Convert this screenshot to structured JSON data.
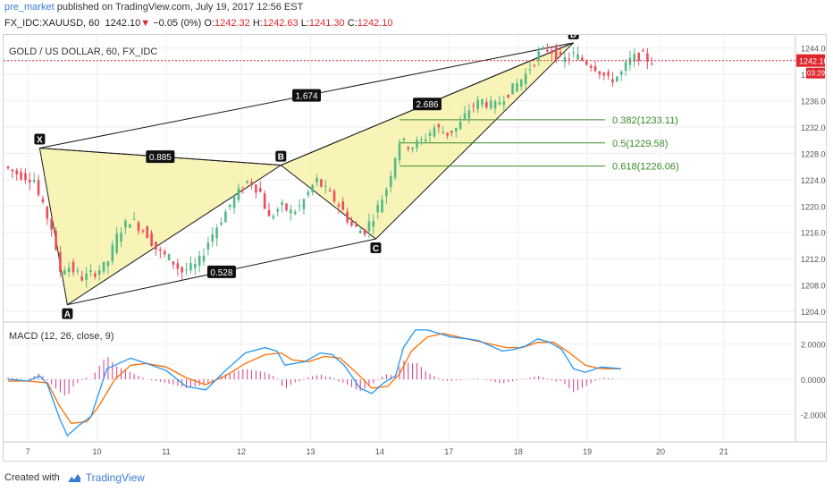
{
  "header": {
    "user": "pre_market",
    "published": "published on TradingView.com, July 19, 2017 12:56 EST",
    "symbol": "FX_IDC:XAUUSD, 60",
    "last": "1242.10",
    "change": "−0.05 (0%)",
    "o_label": "O:",
    "o_value": "1242.32",
    "h_label": "H:",
    "h_value": "1242.63",
    "l_label": "L:",
    "l_value": "1241.30",
    "c_label": "C:",
    "c_value": "1242.10"
  },
  "footer": {
    "created_with": "Created with",
    "brand": "TradingView"
  },
  "colors": {
    "up": "#53b987",
    "down": "#eb4d5c",
    "pattern_fill": "#f6f0a0",
    "pattern_line": "#1a1a1a",
    "fib": "#3a8a2a",
    "macd": "#2196f3",
    "signal": "#ff6d00",
    "hist": "#d23b8c",
    "price_line": "#e0262d",
    "grid": "#eeeeee"
  },
  "chart_data": [
    {
      "type": "candlestick",
      "title": "GOLD / US DOLLAR, 60, FX_IDC",
      "y_ticks": [
        1204,
        1208,
        1212,
        1216,
        1220,
        1224,
        1228,
        1232,
        1236,
        1240,
        1244
      ],
      "y_tick_labels": [
        "1204.00",
        "1208.00",
        "1212.00",
        "1216.00",
        "1220.00",
        "1224.00",
        "1228.00",
        "1232.00",
        "1236.00",
        "1240.00",
        "1244.00"
      ],
      "ylim": [
        1202.5,
        1246
      ],
      "x_labels": [
        "7",
        "10",
        "11",
        "12",
        "13",
        "14",
        "17",
        "18",
        "19",
        "20",
        "21"
      ],
      "last_price_label": "1242.10",
      "countdown_label": "03:29",
      "price_path": [
        [
          0,
          1226
        ],
        [
          6,
          1225
        ],
        [
          16,
          1224
        ],
        [
          18,
          1221
        ],
        [
          24,
          1217
        ],
        [
          28,
          1210
        ],
        [
          32,
          1211
        ],
        [
          40,
          1209
        ],
        [
          46,
          1210
        ],
        [
          52,
          1211
        ],
        [
          58,
          1216
        ],
        [
          64,
          1218
        ],
        [
          72,
          1216
        ],
        [
          78,
          1213
        ],
        [
          84,
          1212
        ],
        [
          90,
          1210
        ],
        [
          98,
          1211
        ],
        [
          104,
          1215
        ],
        [
          110,
          1218
        ],
        [
          116,
          1221
        ],
        [
          124,
          1224
        ],
        [
          130,
          1222
        ],
        [
          134,
          1218
        ],
        [
          140,
          1220
        ],
        [
          146,
          1219
        ],
        [
          150,
          1220
        ],
        [
          158,
          1224
        ],
        [
          164,
          1222
        ],
        [
          170,
          1220
        ],
        [
          176,
          1217
        ],
        [
          182,
          1216
        ],
        [
          188,
          1219
        ],
        [
          194,
          1223
        ],
        [
          200,
          1230
        ],
        [
          206,
          1229
        ],
        [
          212,
          1230
        ],
        [
          218,
          1232
        ],
        [
          224,
          1231
        ],
        [
          230,
          1232
        ],
        [
          236,
          1235
        ],
        [
          242,
          1236
        ],
        [
          248,
          1235
        ],
        [
          254,
          1237
        ],
        [
          258,
          1238
        ],
        [
          264,
          1240
        ],
        [
          270,
          1243
        ],
        [
          276,
          1244
        ],
        [
          282,
          1242
        ],
        [
          288,
          1243
        ],
        [
          294,
          1242
        ],
        [
          300,
          1241
        ],
        [
          306,
          1239
        ],
        [
          312,
          1240
        ],
        [
          316,
          1242
        ],
        [
          322,
          1243
        ],
        [
          327,
          1242
        ]
      ],
      "harmonic_pattern": {
        "points": [
          {
            "label": "X",
            "i": 16,
            "price": 1228.8
          },
          {
            "label": "A",
            "i": 30,
            "price": 1205.0
          },
          {
            "label": "B",
            "i": 138,
            "price": 1226.2
          },
          {
            "label": "C",
            "i": 186,
            "price": 1215.0
          },
          {
            "label": "D",
            "i": 286,
            "price": 1244.8
          }
        ],
        "ratios": [
          {
            "value": "0.885",
            "between": [
              "X",
              "B"
            ]
          },
          {
            "value": "0.528",
            "between": [
              "A",
              "C"
            ]
          },
          {
            "value": "1.674",
            "between": [
              "X",
              "D"
            ]
          },
          {
            "value": "2.686",
            "between": [
              "B",
              "D"
            ]
          }
        ]
      },
      "fibonacci": [
        {
          "label": "0.382(1233.11)",
          "price": 1233.11
        },
        {
          "label": "0.5(1229.58)",
          "price": 1229.58
        },
        {
          "label": "0.618(1226.06)",
          "price": 1226.06
        }
      ]
    },
    {
      "type": "line",
      "title": "MACD (12, 26, close, 9)",
      "y_ticks": [
        2,
        0,
        -2
      ],
      "y_tick_labels": [
        "2.0000",
        "0.0000",
        "-2.0000"
      ],
      "ylim": [
        -3.5,
        3.2
      ],
      "series": [
        {
          "name": "MACD",
          "points": [
            [
              0,
              0.0
            ],
            [
              10,
              -0.1
            ],
            [
              16,
              0.2
            ],
            [
              20,
              -0.3
            ],
            [
              26,
              -2.2
            ],
            [
              30,
              -3.2
            ],
            [
              36,
              -2.6
            ],
            [
              42,
              -2.1
            ],
            [
              50,
              0.6
            ],
            [
              56,
              0.9
            ],
            [
              62,
              1.2
            ],
            [
              70,
              0.9
            ],
            [
              80,
              0.5
            ],
            [
              90,
              -0.4
            ],
            [
              100,
              -0.6
            ],
            [
              110,
              0.5
            ],
            [
              120,
              1.5
            ],
            [
              130,
              1.8
            ],
            [
              136,
              1.6
            ],
            [
              140,
              0.8
            ],
            [
              150,
              1.0
            ],
            [
              158,
              1.5
            ],
            [
              164,
              1.4
            ],
            [
              170,
              0.8
            ],
            [
              178,
              -0.5
            ],
            [
              184,
              -0.8
            ],
            [
              190,
              -0.2
            ],
            [
              196,
              0.2
            ],
            [
              200,
              1.8
            ],
            [
              206,
              2.8
            ],
            [
              212,
              2.8
            ],
            [
              218,
              2.6
            ],
            [
              224,
              2.4
            ],
            [
              232,
              2.3
            ],
            [
              238,
              2.2
            ],
            [
              244,
              1.9
            ],
            [
              250,
              1.6
            ],
            [
              256,
              1.7
            ],
            [
              262,
              1.9
            ],
            [
              268,
              2.3
            ],
            [
              274,
              2.1
            ],
            [
              280,
              1.7
            ],
            [
              286,
              0.6
            ],
            [
              292,
              0.4
            ],
            [
              300,
              0.7
            ],
            [
              310,
              0.6
            ]
          ]
        },
        {
          "name": "Signal",
          "points": [
            [
              0,
              -0.1
            ],
            [
              10,
              -0.1
            ],
            [
              20,
              -0.2
            ],
            [
              26,
              -1.5
            ],
            [
              32,
              -2.5
            ],
            [
              40,
              -2.4
            ],
            [
              46,
              -1.5
            ],
            [
              54,
              0.0
            ],
            [
              62,
              0.8
            ],
            [
              70,
              0.9
            ],
            [
              80,
              0.7
            ],
            [
              90,
              0.1
            ],
            [
              100,
              -0.3
            ],
            [
              110,
              0.2
            ],
            [
              120,
              0.9
            ],
            [
              130,
              1.4
            ],
            [
              138,
              1.5
            ],
            [
              144,
              1.1
            ],
            [
              152,
              1.0
            ],
            [
              160,
              1.3
            ],
            [
              168,
              1.2
            ],
            [
              176,
              0.4
            ],
            [
              184,
              -0.5
            ],
            [
              192,
              -0.4
            ],
            [
              198,
              0.3
            ],
            [
              204,
              1.6
            ],
            [
              212,
              2.4
            ],
            [
              220,
              2.6
            ],
            [
              228,
              2.4
            ],
            [
              236,
              2.2
            ],
            [
              244,
              2.0
            ],
            [
              252,
              1.8
            ],
            [
              260,
              1.8
            ],
            [
              268,
              2.1
            ],
            [
              276,
              2.1
            ],
            [
              284,
              1.5
            ],
            [
              292,
              0.8
            ],
            [
              300,
              0.6
            ],
            [
              310,
              0.6
            ]
          ]
        }
      ]
    }
  ]
}
